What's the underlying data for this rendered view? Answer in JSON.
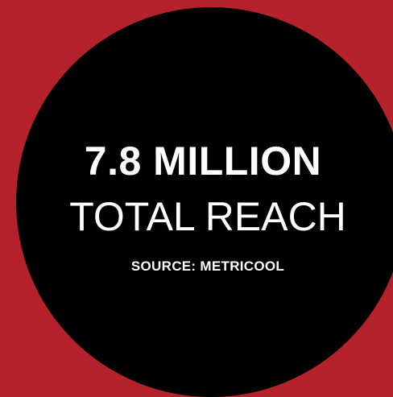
{
  "graphic": {
    "headline": "7.8 MILLION",
    "subline": "TOTAL REACH",
    "source": "SOURCE: METRICOOL"
  },
  "colors": {
    "background": "#b5222c",
    "circle": "#000000",
    "text": "#ffffff"
  }
}
